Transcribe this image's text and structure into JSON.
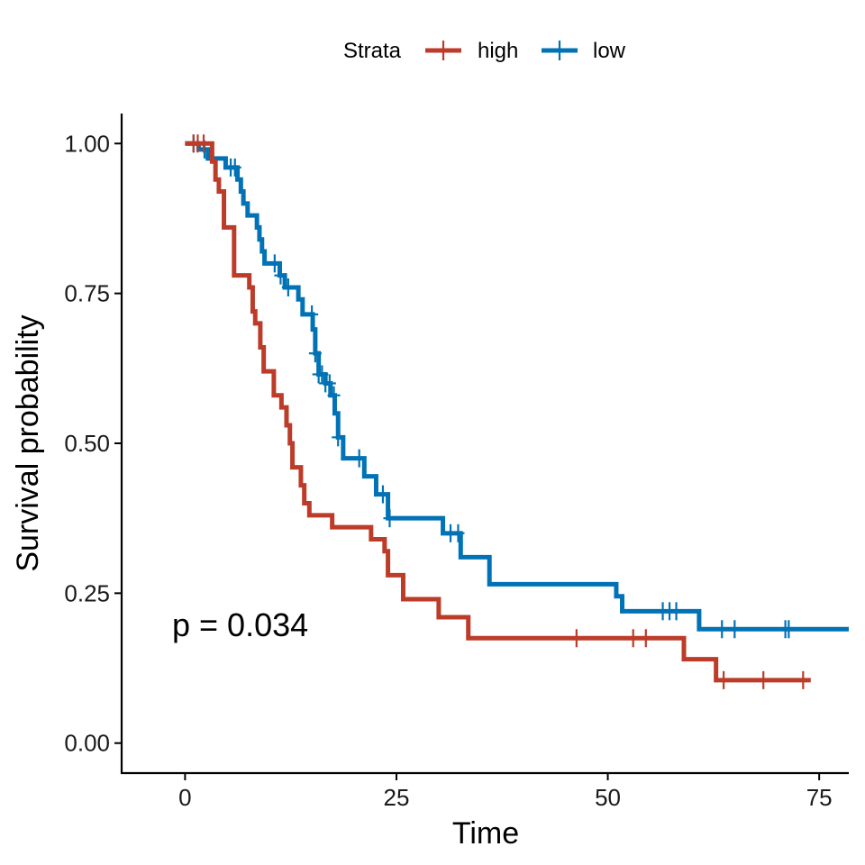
{
  "chart_data": {
    "type": "line",
    "subtype": "kaplan-meier step",
    "xlabel": "Time",
    "ylabel": "Survival probability",
    "xlim": [
      -7.5,
      78.5
    ],
    "ylim": [
      -0.05,
      1.05
    ],
    "x_ticks": [
      0,
      25,
      50,
      75
    ],
    "x_tick_labels": [
      "0",
      "25",
      "50",
      "75"
    ],
    "y_ticks": [
      0,
      0.25,
      0.5,
      0.75,
      1
    ],
    "y_tick_labels": [
      "0.00",
      "0.25",
      "0.50",
      "0.75",
      "1.00"
    ],
    "legend": {
      "title": "Strata",
      "position": "top",
      "entries": [
        "high",
        "low"
      ]
    },
    "annotation": "p = 0.034",
    "grid": false,
    "series": [
      {
        "name": "high",
        "color": "#bc3c29",
        "steps": [
          [
            0,
            1.0
          ],
          [
            3.2,
            0.97
          ],
          [
            3.6,
            0.94
          ],
          [
            4.0,
            0.92
          ],
          [
            4.6,
            0.86
          ],
          [
            5.8,
            0.78
          ],
          [
            7.6,
            0.76
          ],
          [
            8.0,
            0.72
          ],
          [
            8.3,
            0.7
          ],
          [
            8.9,
            0.66
          ],
          [
            9.3,
            0.62
          ],
          [
            10.5,
            0.58
          ],
          [
            11.4,
            0.56
          ],
          [
            12.0,
            0.53
          ],
          [
            12.4,
            0.5
          ],
          [
            12.7,
            0.46
          ],
          [
            13.7,
            0.43
          ],
          [
            14.1,
            0.4
          ],
          [
            14.7,
            0.38
          ],
          [
            17.4,
            0.36
          ],
          [
            22.0,
            0.34
          ],
          [
            23.6,
            0.32
          ],
          [
            24.0,
            0.28
          ],
          [
            25.8,
            0.24
          ],
          [
            30.0,
            0.21
          ],
          [
            33.5,
            0.175
          ],
          [
            59.0,
            0.14
          ],
          [
            62.8,
            0.105
          ],
          [
            74.0,
            0.105
          ]
        ],
        "censor_x": [
          1.0,
          1.5,
          2.2,
          46.3,
          53.0,
          54.5,
          63.7,
          68.4,
          73.1
        ]
      },
      {
        "name": "low",
        "color": "#0072b5",
        "steps": [
          [
            0,
            1.0
          ],
          [
            1.6,
            0.99
          ],
          [
            2.7,
            0.975
          ],
          [
            4.8,
            0.96
          ],
          [
            6.2,
            0.94
          ],
          [
            6.6,
            0.92
          ],
          [
            6.9,
            0.9
          ],
          [
            7.4,
            0.88
          ],
          [
            8.5,
            0.86
          ],
          [
            8.8,
            0.84
          ],
          [
            9.1,
            0.82
          ],
          [
            9.4,
            0.8
          ],
          [
            11.2,
            0.78
          ],
          [
            11.8,
            0.76
          ],
          [
            13.4,
            0.74
          ],
          [
            13.9,
            0.715
          ],
          [
            15.1,
            0.69
          ],
          [
            15.4,
            0.65
          ],
          [
            15.8,
            0.615
          ],
          [
            16.6,
            0.6
          ],
          [
            17.2,
            0.58
          ],
          [
            17.7,
            0.55
          ],
          [
            18.1,
            0.51
          ],
          [
            18.7,
            0.475
          ],
          [
            21.2,
            0.445
          ],
          [
            22.6,
            0.415
          ],
          [
            24.0,
            0.375
          ],
          [
            30.5,
            0.35
          ],
          [
            32.6,
            0.31
          ],
          [
            36.0,
            0.265
          ],
          [
            51.0,
            0.245
          ],
          [
            51.7,
            0.22
          ],
          [
            60.8,
            0.19
          ],
          [
            78.5,
            0.19
          ]
        ],
        "censor_x": [
          1.0,
          2.3,
          5.4,
          5.9,
          10.6,
          11.3,
          12.2,
          15.0,
          15.4,
          15.8,
          16.2,
          16.6,
          17.1,
          17.6,
          18.1,
          20.6,
          23.4,
          24.2,
          31.4,
          32.3,
          56.5,
          57.3,
          58.1,
          63.5,
          65.0,
          71.0,
          71.4
        ]
      }
    ]
  }
}
